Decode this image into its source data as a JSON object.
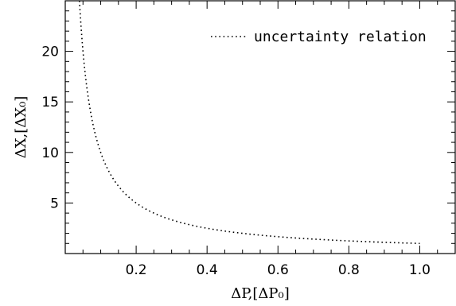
{
  "chart_data": {
    "type": "line",
    "title": "",
    "xlabel": "ΔP,[ΔP₀]",
    "ylabel": "ΔX,[ΔX₀]",
    "xlim": [
      0.0,
      1.1
    ],
    "ylim": [
      0,
      25
    ],
    "x_ticks": [
      0.2,
      0.4,
      0.6,
      0.8,
      1.0
    ],
    "x_tick_labels": [
      "0.2",
      "0.4",
      "0.6",
      "0.8",
      "1.0"
    ],
    "y_ticks": [
      5,
      10,
      15,
      20
    ],
    "y_tick_labels": [
      "5",
      "10",
      "15",
      "20"
    ],
    "grid": false,
    "legend_position": "top-right",
    "series": [
      {
        "name": "uncertainty relation",
        "style": "dotted",
        "color": "#000000",
        "x": [
          0.04,
          0.05,
          0.06,
          0.07,
          0.08,
          0.1,
          0.12,
          0.15,
          0.2,
          0.25,
          0.3,
          0.35,
          0.4,
          0.5,
          0.6,
          0.7,
          0.8,
          0.9,
          1.0
        ],
        "y": [
          25.0,
          20.0,
          16.7,
          14.3,
          12.5,
          10.0,
          8.33,
          6.67,
          5.0,
          4.0,
          3.33,
          2.86,
          2.5,
          2.0,
          1.67,
          1.43,
          1.25,
          1.11,
          1.0
        ]
      }
    ]
  }
}
